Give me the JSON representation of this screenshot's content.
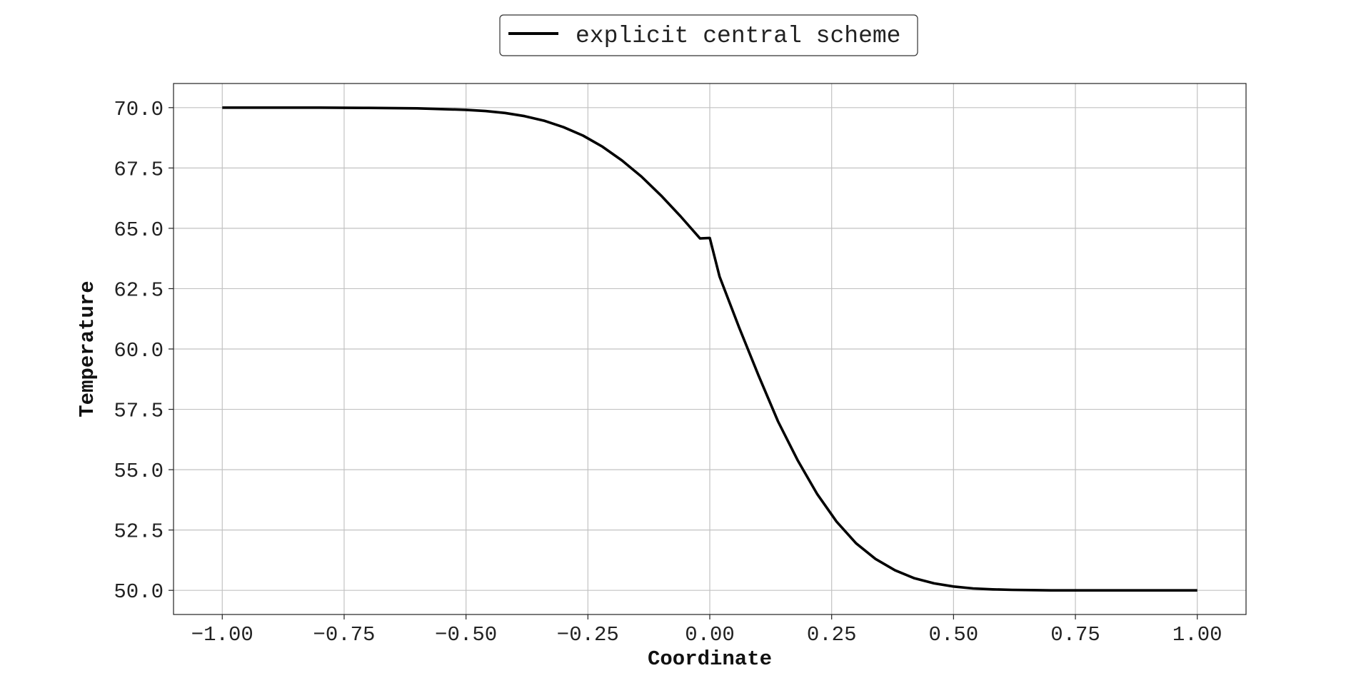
{
  "chart_data": {
    "type": "line",
    "title": "",
    "xlabel": "Coordinate",
    "ylabel": "Temperature",
    "xlim": [
      -1.1,
      1.1
    ],
    "ylim": [
      49.0,
      71.0
    ],
    "xticks": [
      -1.0,
      -0.75,
      -0.5,
      -0.25,
      0.0,
      0.25,
      0.5,
      0.75,
      1.0
    ],
    "xtick_labels": [
      "−1.00",
      "−0.75",
      "−0.50",
      "−0.25",
      "0.00",
      "0.25",
      "0.50",
      "0.75",
      "1.00"
    ],
    "yticks": [
      50.0,
      52.5,
      55.0,
      57.5,
      60.0,
      62.5,
      65.0,
      67.5,
      70.0
    ],
    "ytick_labels": [
      "50.0",
      "52.5",
      "55.0",
      "57.5",
      "60.0",
      "62.5",
      "65.0",
      "67.5",
      "70.0"
    ],
    "grid": true,
    "legend_position": "top-center",
    "series": [
      {
        "name": "explicit central scheme",
        "color": "#000000",
        "x": [
          -1.0,
          -0.9,
          -0.8,
          -0.7,
          -0.6,
          -0.5,
          -0.46,
          -0.42,
          -0.38,
          -0.34,
          -0.3,
          -0.26,
          -0.22,
          -0.18,
          -0.14,
          -0.1,
          -0.06,
          -0.02,
          0.0,
          0.02,
          0.06,
          0.1,
          0.14,
          0.18,
          0.22,
          0.26,
          0.3,
          0.34,
          0.38,
          0.42,
          0.46,
          0.5,
          0.54,
          0.58,
          0.62,
          0.66,
          0.7,
          0.8,
          0.9,
          1.0
        ],
        "y": [
          70.0,
          70.0,
          70.0,
          69.99,
          69.97,
          69.91,
          69.86,
          69.78,
          69.65,
          69.46,
          69.19,
          68.84,
          68.38,
          67.81,
          67.14,
          66.36,
          65.5,
          64.58,
          64.6,
          63.0,
          60.9,
          58.9,
          57.0,
          55.4,
          54.0,
          52.85,
          51.95,
          51.3,
          50.83,
          50.5,
          50.29,
          50.16,
          50.08,
          50.04,
          50.02,
          50.01,
          50.0,
          50.0,
          50.0,
          50.0
        ]
      }
    ]
  }
}
